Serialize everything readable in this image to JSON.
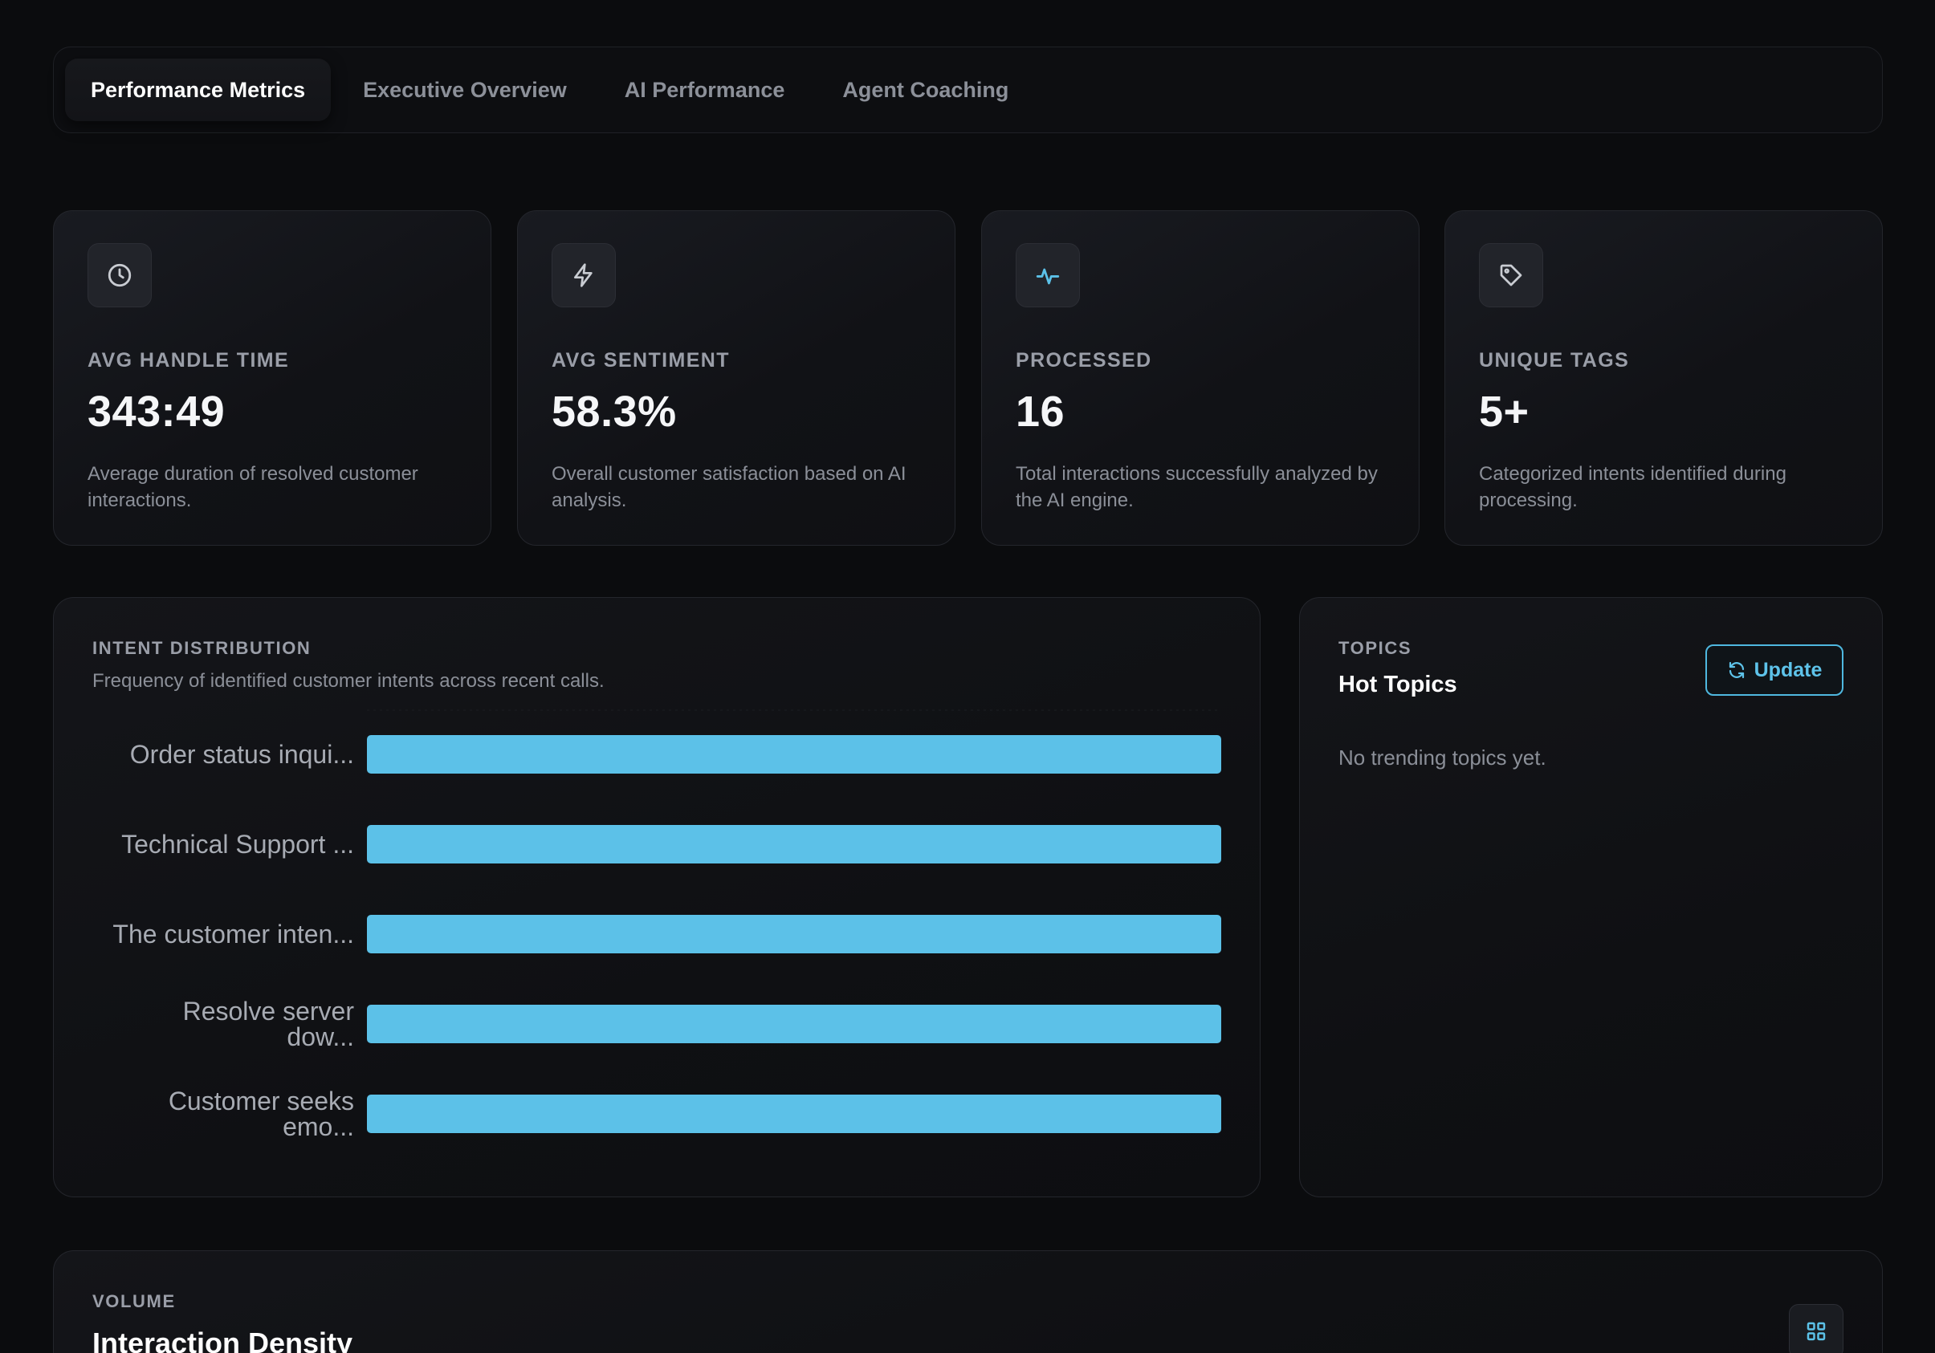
{
  "tabs": [
    {
      "label": "Performance Metrics",
      "active": true
    },
    {
      "label": "Executive Overview",
      "active": false
    },
    {
      "label": "AI Performance",
      "active": false
    },
    {
      "label": "Agent Coaching",
      "active": false
    }
  ],
  "metrics": [
    {
      "icon": "clock-icon",
      "label": "AVG HANDLE TIME",
      "value": "343:49",
      "description": "Average duration of resolved customer interactions."
    },
    {
      "icon": "lightning-icon",
      "label": "AVG SENTIMENT",
      "value": "58.3%",
      "description": "Overall customer satisfaction based on AI analysis."
    },
    {
      "icon": "activity-icon",
      "label": "PROCESSED",
      "value": "16",
      "description": "Total interactions successfully analyzed by the AI engine."
    },
    {
      "icon": "tag-icon",
      "label": "UNIQUE TAGS",
      "value": "5+",
      "description": "Categorized intents identified during processing."
    }
  ],
  "intent": {
    "eyebrow": "INTENT DISTRIBUTION",
    "subtitle": "Frequency of identified customer intents across recent calls."
  },
  "chart_data": {
    "type": "bar",
    "orientation": "horizontal",
    "title": "",
    "xlabel": "",
    "ylabel": "",
    "categories": [
      [
        "Order status inqui..."
      ],
      [
        "Technical Support ..."
      ],
      [
        "The customer inten..."
      ],
      [
        "Resolve server",
        "dow..."
      ],
      [
        "Customer seeks",
        "emo..."
      ]
    ],
    "values": [
      1,
      1,
      1,
      1,
      1
    ],
    "xlim": [
      0,
      1
    ],
    "grid": false,
    "bar_color": "#5cc1e8"
  },
  "topics": {
    "eyebrow": "TOPICS",
    "title": "Hot Topics",
    "empty_text": "No trending topics yet.",
    "update_label": "Update"
  },
  "volume": {
    "eyebrow": "VOLUME",
    "title": "Interaction Density"
  },
  "colors": {
    "accent": "#5cc1e8",
    "background": "#0b0c0e"
  }
}
